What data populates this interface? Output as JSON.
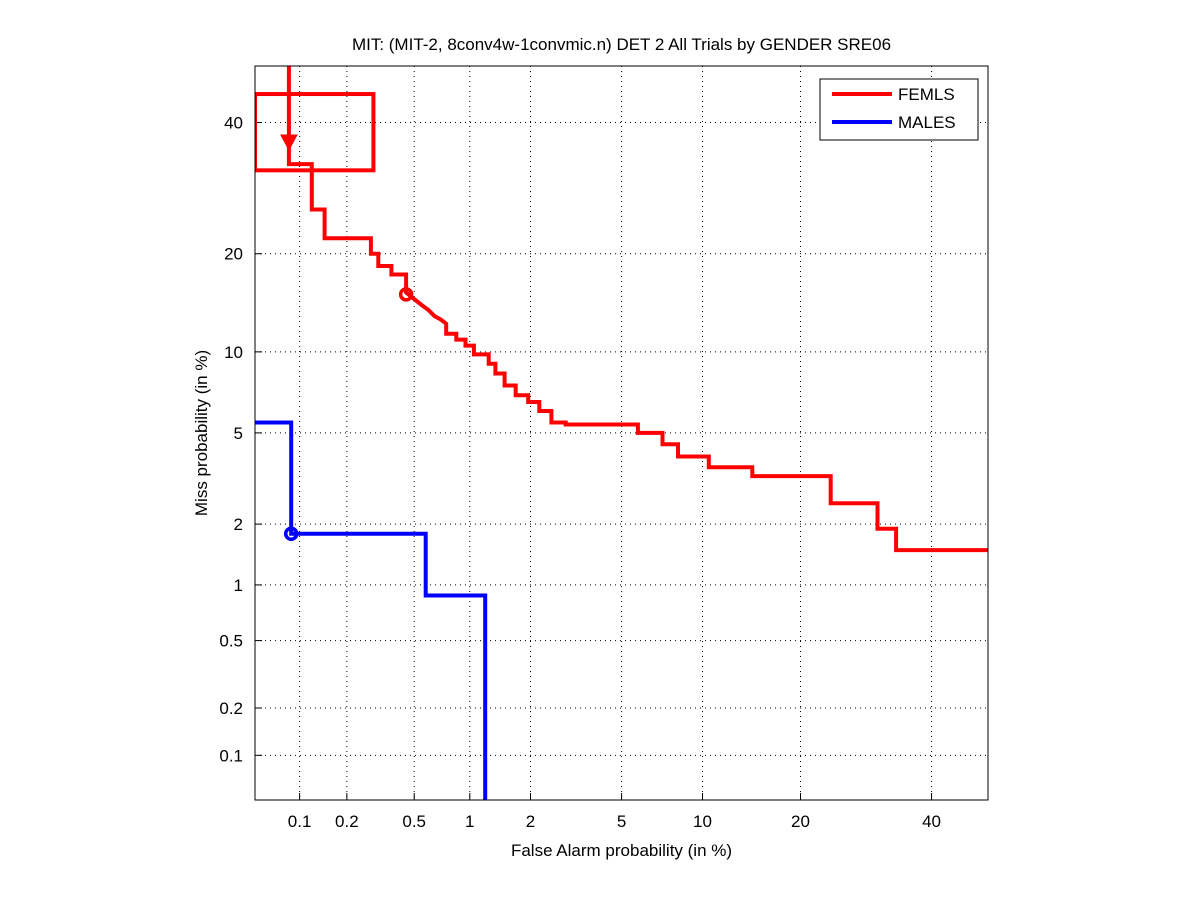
{
  "chart_data": {
    "type": "line",
    "scale": "normal-deviate",
    "title": "MIT: (MIT-2, 8conv4w-1convmic.n) DET 2 All Trials by GENDER SRE06",
    "xlabel": "False Alarm probability (in %)",
    "ylabel": "Miss probability (in %)",
    "xlim": [
      0.05,
      50
    ],
    "ylim": [
      0.05,
      50
    ],
    "grid": true,
    "legend_position": "top-right",
    "x_ticks": [
      {
        "value": 0.1,
        "label": "0.1"
      },
      {
        "value": 0.2,
        "label": "0.2"
      },
      {
        "value": 0.5,
        "label": "0.5"
      },
      {
        "value": 1,
        "label": "1"
      },
      {
        "value": 2,
        "label": "2"
      },
      {
        "value": 5,
        "label": "5"
      },
      {
        "value": 10,
        "label": "10"
      },
      {
        "value": 20,
        "label": "20"
      },
      {
        "value": 40,
        "label": "40"
      }
    ],
    "y_ticks": [
      {
        "value": 0.1,
        "label": "0.1"
      },
      {
        "value": 0.2,
        "label": "0.2"
      },
      {
        "value": 0.5,
        "label": "0.5"
      },
      {
        "value": 1,
        "label": "1"
      },
      {
        "value": 2,
        "label": "2"
      },
      {
        "value": 5,
        "label": "5"
      },
      {
        "value": 10,
        "label": "10"
      },
      {
        "value": 20,
        "label": "20"
      },
      {
        "value": 40,
        "label": "40"
      }
    ],
    "series": [
      {
        "name": "FEMLS",
        "color": "#ff0000",
        "x": [
          0.085,
          0.085,
          0.12,
          0.12,
          0.145,
          0.145,
          0.28,
          0.28,
          0.31,
          0.31,
          0.37,
          0.37,
          0.45,
          0.45,
          0.5,
          0.55,
          0.6,
          0.65,
          0.7,
          0.75,
          0.75,
          0.85,
          0.85,
          0.95,
          0.95,
          1.05,
          1.05,
          1.25,
          1.25,
          1.35,
          1.35,
          1.5,
          1.5,
          1.7,
          1.7,
          1.95,
          1.95,
          2.2,
          2.2,
          2.5,
          2.5,
          2.9,
          2.9,
          5.8,
          5.8,
          7.2,
          7.2,
          8.2,
          8.2,
          10.5,
          10.5,
          14.5,
          14.5,
          24,
          24,
          31,
          31,
          34,
          34,
          50
        ],
        "y": [
          50,
          33,
          33,
          26,
          26,
          22,
          22,
          20,
          20,
          18.5,
          18.5,
          17.5,
          17.5,
          15.5,
          14.8,
          14.2,
          13.7,
          13.1,
          12.8,
          12.4,
          11.5,
          11.5,
          11,
          11,
          10.5,
          10.5,
          9.8,
          9.8,
          9.1,
          9.1,
          8.4,
          8.4,
          7.6,
          7.6,
          7.0,
          7.0,
          6.6,
          6.6,
          6.1,
          6.1,
          5.5,
          5.5,
          5.4,
          5.4,
          5.0,
          5.0,
          4.5,
          4.5,
          4.0,
          4.0,
          3.6,
          3.6,
          3.3,
          3.3,
          2.5,
          2.5,
          1.9,
          1.9,
          1.5,
          1.5
        ],
        "markers": [
          {
            "type": "triangle-down",
            "x": 0.085,
            "y": 36.5
          },
          {
            "type": "circle",
            "x": 0.45,
            "y": 15.3
          }
        ],
        "confidence_box": {
          "x": [
            0.05,
            0.29
          ],
          "y": [
            32,
            45
          ]
        }
      },
      {
        "name": "MALES",
        "color": "#0000ff",
        "x": [
          0.05,
          0.088,
          0.088,
          0.58,
          0.58,
          1.2,
          1.2
        ],
        "y": [
          5.5,
          5.5,
          1.8,
          1.8,
          0.88,
          0.88,
          0.05
        ],
        "markers": [
          {
            "type": "circle",
            "x": 0.088,
            "y": 1.8
          }
        ]
      }
    ]
  }
}
